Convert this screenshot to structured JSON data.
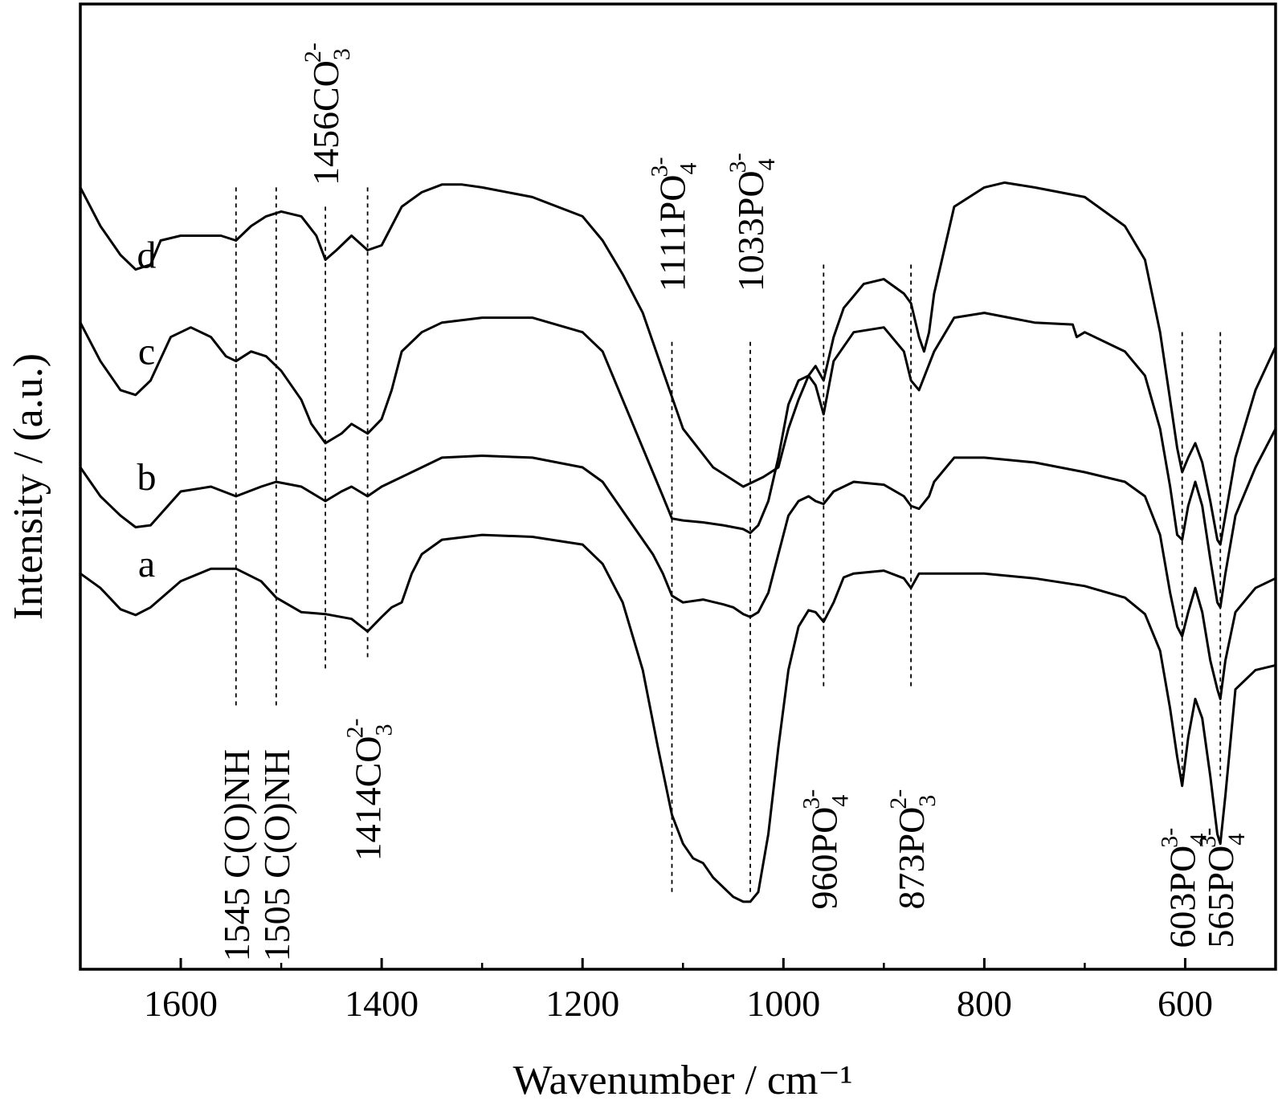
{
  "chart_data": {
    "type": "line",
    "xlabel": "Wavenumber / cm⁻¹",
    "ylabel": "Intensity / (a.u.)",
    "xlim": [
      1700,
      510
    ],
    "x_reversed": true,
    "ylim": [
      0,
      100
    ],
    "y_ticks_shown": false,
    "grid": false,
    "x_ticks": [
      1600,
      1400,
      1200,
      1000,
      800,
      600
    ],
    "x_minor_ticks": [
      1500,
      1300,
      1100,
      900,
      700
    ],
    "series": [
      {
        "name": "a",
        "label_x": 1650,
        "label_y": 42,
        "x": [
          1700,
          1680,
          1660,
          1645,
          1630,
          1600,
          1570,
          1545,
          1520,
          1505,
          1480,
          1456,
          1430,
          1414,
          1400,
          1390,
          1380,
          1370,
          1360,
          1340,
          1300,
          1250,
          1200,
          1180,
          1160,
          1140,
          1125,
          1111,
          1100,
          1090,
          1080,
          1070,
          1060,
          1050,
          1040,
          1033,
          1025,
          1015,
          1005,
          995,
          985,
          975,
          968,
          960,
          950,
          940,
          930,
          900,
          880,
          873,
          865,
          850,
          800,
          750,
          700,
          660,
          640,
          625,
          615,
          608,
          603,
          597,
          590,
          583,
          575,
          568,
          565,
          560,
          550,
          530,
          510
        ],
        "y": [
          41,
          39.5,
          37.3,
          36.7,
          37.5,
          40.2,
          41.5,
          41.5,
          40.2,
          38.5,
          37,
          36.8,
          36.3,
          35,
          36.5,
          37.5,
          38,
          41,
          43,
          44.5,
          45,
          44.8,
          44,
          42,
          38,
          31,
          23,
          16,
          13,
          11.5,
          11,
          9.5,
          8.5,
          7.5,
          7,
          7,
          8,
          14,
          23,
          31,
          35.5,
          37.2,
          37,
          36,
          38,
          40.6,
          41,
          41.3,
          40.5,
          39.5,
          41,
          41,
          41,
          40.5,
          39.7,
          38.5,
          36.8,
          33,
          27,
          22,
          19,
          24,
          28,
          26,
          20,
          14,
          13,
          18,
          29,
          31,
          31.5
        ]
      },
      {
        "name": "b",
        "label_x": 1650,
        "label_y": 51,
        "x": [
          1700,
          1680,
          1660,
          1645,
          1630,
          1600,
          1570,
          1545,
          1520,
          1505,
          1480,
          1456,
          1440,
          1430,
          1414,
          1400,
          1390,
          1380,
          1360,
          1340,
          1300,
          1250,
          1200,
          1180,
          1160,
          1140,
          1130,
          1120,
          1111,
          1100,
          1080,
          1060,
          1050,
          1040,
          1033,
          1025,
          1015,
          1005,
          995,
          985,
          975,
          968,
          960,
          950,
          930,
          900,
          880,
          873,
          865,
          855,
          850,
          830,
          800,
          750,
          700,
          660,
          640,
          625,
          615,
          608,
          603,
          597,
          590,
          583,
          575,
          568,
          565,
          560,
          550,
          530,
          510
        ],
        "y": [
          52,
          49,
          47,
          45.8,
          46,
          49.5,
          50,
          49,
          50,
          50.5,
          50,
          48.5,
          49.5,
          50,
          49,
          50,
          50.5,
          51,
          52,
          53,
          53.2,
          53,
          52,
          50.5,
          47.5,
          44.5,
          43,
          41,
          38.7,
          38,
          38.3,
          37.8,
          37.5,
          36.8,
          36.5,
          37,
          39,
          43,
          47,
          48.5,
          49,
          48.5,
          48.2,
          49.5,
          50.5,
          50.2,
          49,
          48,
          47.7,
          49,
          50.5,
          53,
          53,
          52.5,
          51.5,
          50.5,
          49,
          45,
          39,
          35.5,
          34.5,
          37,
          39.5,
          37,
          32,
          29,
          28,
          32,
          37,
          39.5,
          40.5
        ]
      },
      {
        "name": "c",
        "label_x": 1650,
        "label_y": 64,
        "x": [
          1700,
          1680,
          1660,
          1645,
          1630,
          1610,
          1590,
          1570,
          1555,
          1545,
          1530,
          1515,
          1500,
          1480,
          1470,
          1456,
          1440,
          1430,
          1414,
          1400,
          1390,
          1380,
          1360,
          1340,
          1300,
          1250,
          1200,
          1180,
          1160,
          1140,
          1130,
          1120,
          1111,
          1100,
          1080,
          1060,
          1050,
          1040,
          1033,
          1025,
          1015,
          1005,
          995,
          985,
          975,
          968,
          960,
          950,
          930,
          900,
          880,
          873,
          865,
          850,
          830,
          800,
          750,
          712,
          708,
          700,
          660,
          640,
          625,
          615,
          608,
          603,
          597,
          590,
          583,
          575,
          568,
          565,
          560,
          550,
          530,
          510
        ],
        "y": [
          67,
          63,
          60,
          59.5,
          61,
          65.5,
          66.5,
          65.5,
          63.5,
          63,
          64,
          63.5,
          62,
          59,
          56.5,
          54.5,
          55.5,
          56.5,
          55.5,
          57,
          60,
          64,
          66,
          67,
          67.5,
          67.5,
          66,
          64,
          59,
          54,
          51.5,
          49,
          46.7,
          46.5,
          46.3,
          46,
          45.8,
          45.6,
          45.2,
          46,
          48.5,
          53,
          58.5,
          61,
          61.5,
          60.5,
          57.5,
          63,
          66,
          66.5,
          64,
          61,
          60,
          64,
          67.5,
          68,
          67,
          66.8,
          65.5,
          66,
          64,
          61.5,
          56,
          50,
          45,
          44.5,
          48,
          50.5,
          48,
          42.5,
          38,
          37.5,
          41,
          47,
          52,
          56
        ]
      },
      {
        "name": "d",
        "label_x": 1650,
        "label_y": 74,
        "x": [
          1700,
          1680,
          1660,
          1645,
          1630,
          1620,
          1600,
          1580,
          1560,
          1545,
          1530,
          1515,
          1500,
          1480,
          1465,
          1456,
          1445,
          1430,
          1414,
          1400,
          1390,
          1380,
          1360,
          1340,
          1320,
          1300,
          1250,
          1200,
          1180,
          1160,
          1150,
          1140,
          1120,
          1100,
          1070,
          1040,
          1020,
          1005,
          995,
          985,
          975,
          968,
          960,
          950,
          940,
          920,
          900,
          880,
          873,
          865,
          860,
          855,
          850,
          830,
          800,
          780,
          750,
          700,
          660,
          640,
          625,
          615,
          608,
          603,
          597,
          590,
          583,
          575,
          568,
          565,
          560,
          550,
          530,
          510
        ],
        "y": [
          81,
          77,
          74,
          72.5,
          73,
          75.5,
          76,
          76,
          76,
          75.5,
          77,
          78,
          78.5,
          78,
          76,
          73.5,
          74.5,
          76,
          74.5,
          75,
          77,
          79,
          80.5,
          81.3,
          81.3,
          81,
          80,
          78,
          75.5,
          72,
          70,
          68,
          62,
          56,
          52,
          50,
          51,
          52,
          56,
          59,
          61.5,
          62.5,
          61,
          65.5,
          68.5,
          71,
          71.5,
          70,
          69,
          65.5,
          64,
          66,
          70,
          79,
          81,
          81.5,
          81,
          80,
          77,
          73.5,
          66,
          59,
          54,
          51.5,
          53,
          54.5,
          52.5,
          48.5,
          44.5,
          44,
          47,
          53,
          60,
          64.5
        ]
      }
    ],
    "annotations": [
      {
        "x": 1545,
        "base": "1545 C(O)NH",
        "sup": "",
        "sub": "",
        "y_top": 81,
        "y_bottom": 27,
        "label_pos": "below",
        "label_anchor_y": 0.8
      },
      {
        "x": 1505,
        "base": "1505 C(O)NH",
        "sup": "",
        "sub": "",
        "y_top": 81,
        "y_bottom": 27,
        "label_pos": "below",
        "label_anchor_y": 0.8
      },
      {
        "x": 1456,
        "base": "1456CO",
        "sup": "2-",
        "sub": "3",
        "y_top": 79,
        "y_bottom": 31,
        "label_pos": "above",
        "label_anchor_y": 81.2
      },
      {
        "x": 1414,
        "base": "1414CO",
        "sup": "2-",
        "sub": "3",
        "y_top": 81,
        "y_bottom": 32,
        "label_pos": "below",
        "label_anchor_y": 11.2
      },
      {
        "x": 1111,
        "base": "1111PO",
        "sup": "3-",
        "sub": "4",
        "y_top": 65,
        "y_bottom": 8,
        "label_pos": "above",
        "label_anchor_y": 70.2
      },
      {
        "x": 1033,
        "base": "1033PO",
        "sup": "3-",
        "sub": "4",
        "y_top": 65,
        "y_bottom": 8,
        "label_pos": "above",
        "label_anchor_y": 70.2
      },
      {
        "x": 960,
        "base": "960PO",
        "sup": "3-",
        "sub": "4",
        "y_top": 73,
        "y_bottom": 29,
        "label_pos": "below",
        "label_anchor_y": 6.2
      },
      {
        "x": 873,
        "base": "873PO",
        "sup": "2-",
        "sub": "3",
        "y_top": 73,
        "y_bottom": 29,
        "label_pos": "below",
        "label_anchor_y": 6.2
      },
      {
        "x": 603,
        "base": "603PO",
        "sup": "3-",
        "sub": "4",
        "y_top": 66,
        "y_bottom": 20,
        "label_pos": "below",
        "label_anchor_y": 2.2
      },
      {
        "x": 565,
        "base": "565PO",
        "sup": "3-",
        "sub": "4",
        "y_top": 66,
        "y_bottom": 20,
        "label_pos": "below",
        "label_anchor_y": 2.2
      }
    ]
  }
}
